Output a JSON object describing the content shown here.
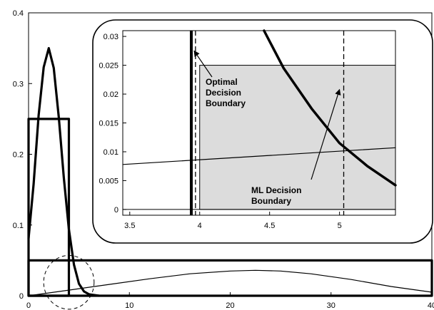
{
  "chart_data": [
    {
      "type": "line",
      "xlim": [
        0,
        40
      ],
      "ylim": [
        0,
        0.4
      ],
      "x_ticks": [
        "0",
        "10",
        "20",
        "30",
        "40"
      ],
      "y_ticks": [
        "0",
        "0.1",
        "0.2",
        "0.3",
        "0.4"
      ],
      "grid": false,
      "series": [
        {
          "style": "thick-line",
          "x": [
            0,
            0.5,
            1,
            1.5,
            2,
            2.5,
            3,
            3.5,
            4,
            4.5,
            5,
            5.5,
            6,
            7
          ],
          "y": [
            0.081,
            0.158,
            0.255,
            0.323,
            0.35,
            0.322,
            0.252,
            0.167,
            0.094,
            0.044,
            0.017,
            0.006,
            0.002,
            0
          ]
        },
        {
          "style": "thin-line",
          "x": [
            0,
            4,
            8,
            12,
            16,
            20,
            22.5,
            25,
            28,
            32,
            36,
            40
          ],
          "y": [
            0.0,
            0.008,
            0.016,
            0.024,
            0.031,
            0.035,
            0.036,
            0.035,
            0.031,
            0.023,
            0.013,
            0.005
          ]
        },
        {
          "style": "rectangle",
          "x": [
            0,
            0,
            4,
            4
          ],
          "y": [
            0,
            0.25,
            0.25,
            0
          ]
        },
        {
          "style": "rectangle",
          "x": [
            0,
            0,
            40,
            40
          ],
          "y": [
            0,
            0.05,
            0.05,
            0
          ]
        }
      ],
      "highlight_circle": {
        "cx": 4,
        "cy": 0.019,
        "rx": 2.5,
        "ry": 0.038
      }
    },
    {
      "type": "line",
      "xlim": [
        3.45,
        5.4
      ],
      "ylim": [
        -0.001,
        0.031
      ],
      "x_ticks": [
        "3.5",
        "4",
        "4.5",
        "5"
      ],
      "y_ticks": [
        "0",
        "0.005",
        "0.01",
        "0.015",
        "0.02",
        "0.025",
        "0.03"
      ],
      "grid": false,
      "vertical_lines": [
        {
          "x": 3.94,
          "style": "thick"
        },
        {
          "x": 3.97,
          "style": "dashed"
        },
        {
          "x": 5.03,
          "style": "dashed"
        }
      ],
      "shaded_region": {
        "x": [
          4.0,
          5.4
        ],
        "y": [
          0,
          0.025
        ]
      },
      "series": [
        {
          "style": "thick-line",
          "x": [
            4.46,
            4.6,
            4.8,
            5.0,
            5.2,
            5.4
          ],
          "y": [
            0.031,
            0.0245,
            0.0175,
            0.0115,
            0.0075,
            0.0042
          ]
        },
        {
          "style": "thin-line",
          "x": [
            3.45,
            5.4
          ],
          "y": [
            0.0078,
            0.0107
          ]
        }
      ],
      "annotations": [
        {
          "text_lines": [
            "Optimal",
            "Decision",
            "Boundary"
          ],
          "points_to": [
            3.96,
            0.0275
          ]
        },
        {
          "text_lines": [
            "ML Decision",
            "Boundary"
          ],
          "points_to": [
            5.0,
            0.0208
          ]
        }
      ]
    }
  ]
}
